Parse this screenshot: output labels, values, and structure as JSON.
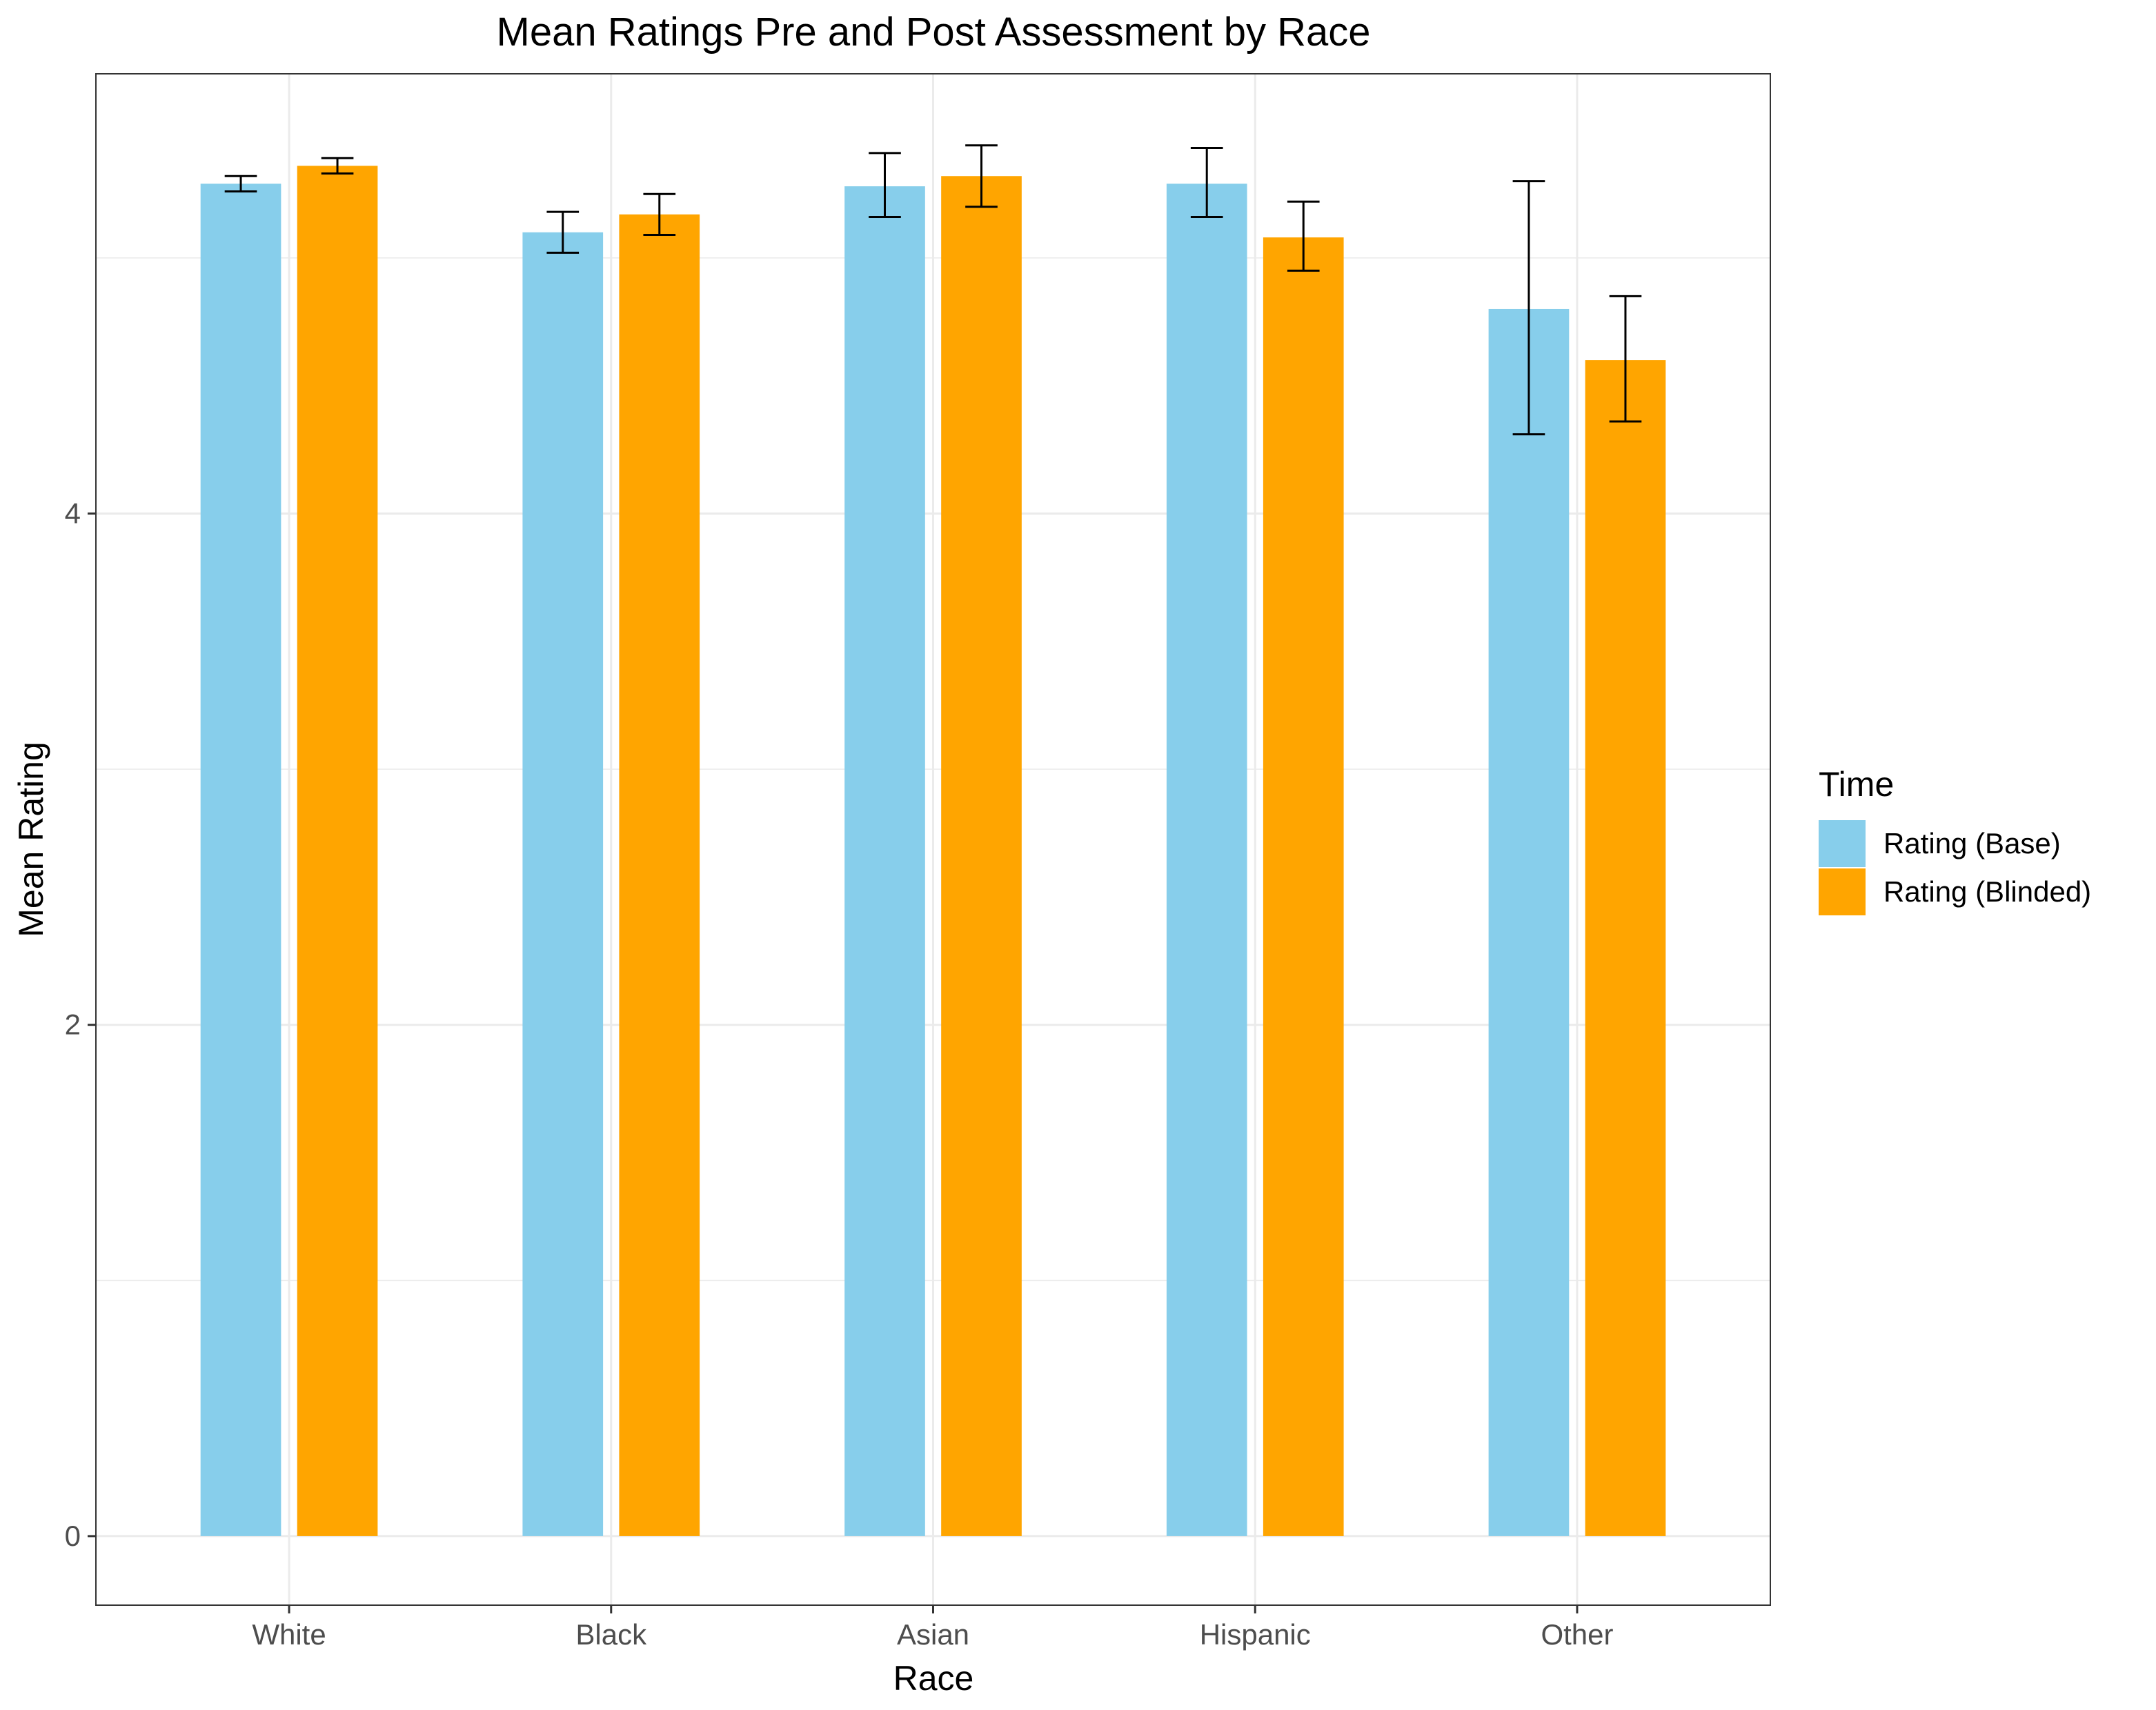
{
  "chart_data": {
    "type": "bar",
    "title": "Mean Ratings Pre and Post Assessment by Race",
    "xlabel": "Race",
    "ylabel": "Mean Rating",
    "categories": [
      "White",
      "Black",
      "Asian",
      "Hispanic",
      "Other"
    ],
    "yticks": [
      0,
      2,
      4
    ],
    "ylim": [
      -0.27,
      5.72
    ],
    "grid": true,
    "legend": {
      "title": "Time",
      "position": "right"
    },
    "series": [
      {
        "name": "Rating (Base)",
        "color": "#87CEEB",
        "values": [
          5.29,
          5.1,
          5.28,
          5.29,
          4.8
        ],
        "error_low": [
          5.26,
          5.02,
          5.16,
          5.16,
          4.31
        ],
        "error_high": [
          5.32,
          5.18,
          5.41,
          5.43,
          5.3
        ]
      },
      {
        "name": "Rating (Blinded)",
        "color": "#FFA500",
        "values": [
          5.36,
          5.17,
          5.32,
          5.08,
          4.6
        ],
        "error_low": [
          5.33,
          5.09,
          5.2,
          4.95,
          4.36
        ],
        "error_high": [
          5.39,
          5.25,
          5.44,
          5.22,
          4.85
        ]
      }
    ]
  }
}
